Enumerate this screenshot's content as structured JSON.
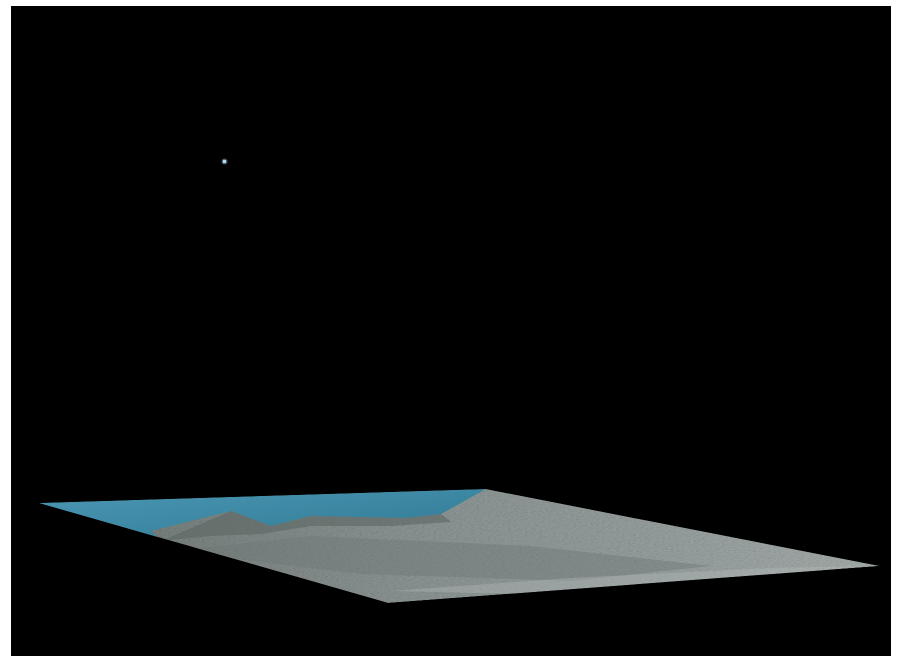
{
  "scene": {
    "background_color": "#000000",
    "frame_color": "#ffffff",
    "marker": {
      "icon": "star-point-icon",
      "color": "#9fd8ff"
    },
    "terrain": {
      "icon": "terrain-tile-icon",
      "water_color": "#3f8aa6",
      "land_color": "#8b9594"
    }
  }
}
